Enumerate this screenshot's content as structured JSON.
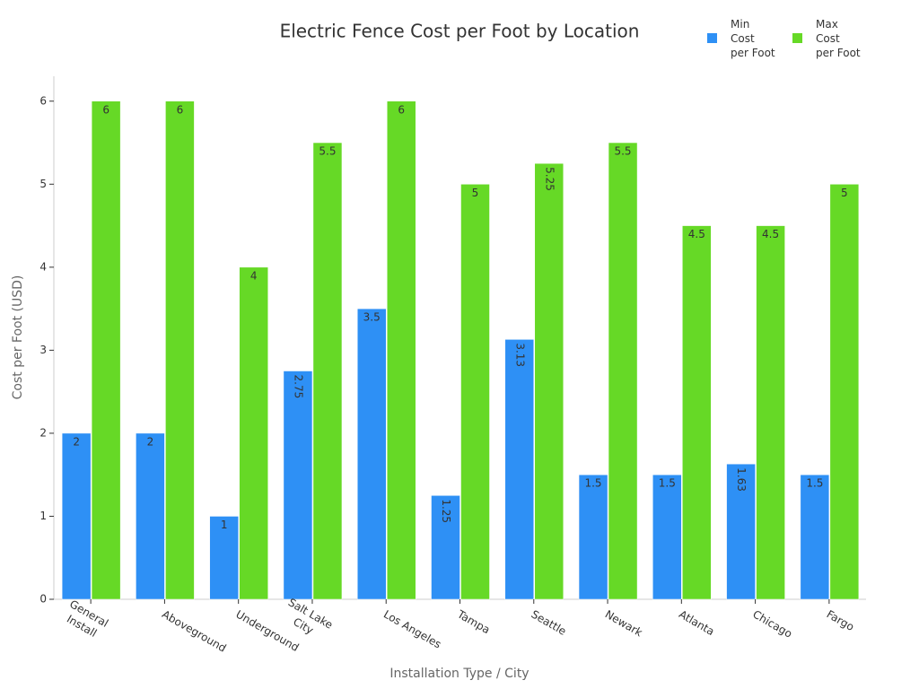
{
  "chart_data": {
    "type": "bar",
    "title": "Electric Fence Cost per Foot by Location",
    "x_label": "Installation Type / City",
    "y_label": "Cost per Foot (USD)",
    "categories": [
      "General\nInstall",
      "Aboveground",
      "Underground",
      "Salt Lake\nCity",
      "Los Angeles",
      "Tampa",
      "Seattle",
      "Newark",
      "Atlanta",
      "Chicago",
      "Fargo"
    ],
    "series": [
      {
        "name": "Min\nCost\nper Foot",
        "color": "#2e90f5",
        "values": [
          2,
          2,
          1,
          2.75,
          3.5,
          1.25,
          3.13,
          1.5,
          1.5,
          1.63,
          1.5
        ]
      },
      {
        "name": "Max\nCost\nper Foot",
        "color": "#66d926",
        "values": [
          6,
          6,
          4,
          5.5,
          6,
          5,
          5.25,
          5.5,
          4.5,
          4.5,
          5
        ]
      }
    ],
    "ylim": [
      0,
      6.3
    ],
    "yticks": [
      0,
      1,
      2,
      3,
      4,
      5,
      6
    ],
    "grid": false,
    "legend": "top-right"
  }
}
